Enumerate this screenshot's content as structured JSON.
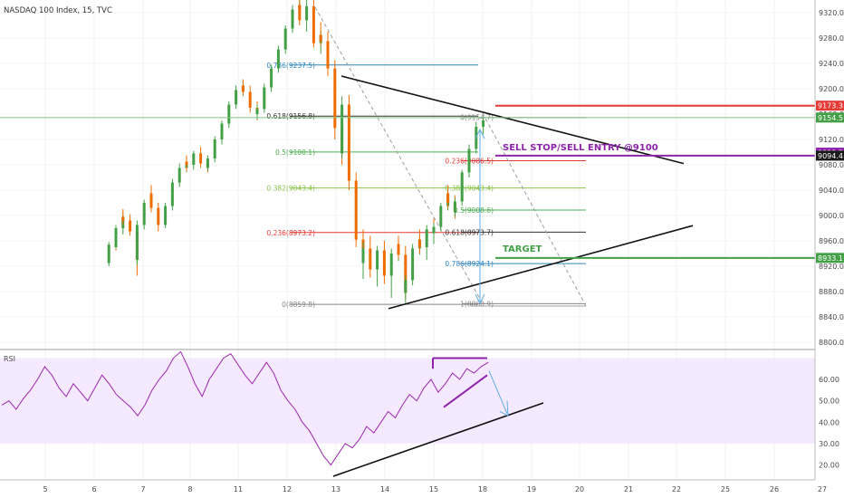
{
  "chart_data": {
    "type": "candlestick",
    "title": "NASDAQ 100 Index, 15, TVC",
    "price_axis": {
      "range": [
        8790,
        9340
      ],
      "ticks": [
        "9320.0",
        "9280.0",
        "9240.0",
        "9200.0",
        "9160.0",
        "9120.0",
        "9080.0",
        "9040.0",
        "9000.0",
        "8960.0",
        "8920.0",
        "8880.0",
        "8840.0",
        "8800.0"
      ]
    },
    "rsi_axis": {
      "label": "RSI",
      "range": [
        13,
        74
      ],
      "ticks": [
        "60.00",
        "50.00",
        "40.00",
        "30.00",
        "20.00"
      ],
      "band": [
        30,
        70
      ]
    },
    "x_ticks": [
      "5",
      "6",
      "7",
      "8",
      "11",
      "12",
      "13",
      "14",
      "15",
      "18",
      "19",
      "20",
      "21",
      "22",
      "25",
      "26",
      "27"
    ],
    "fib_levels": [
      {
        "label": "0.786(9237.5)",
        "value": 9237.5,
        "color": "#2e86c1"
      },
      {
        "label": "0.618(9156.8)",
        "value": 9156.8,
        "color": "#333333"
      },
      {
        "label": "0.5(9100.1)",
        "value": 9100.1,
        "color": "#4caf50"
      },
      {
        "label": "0.382(9043.4)",
        "value": 9043.4,
        "color": "#8bc34a"
      },
      {
        "label": "0.236(8973.2)",
        "value": 8973.2,
        "color": "#e53935"
      },
      {
        "label": "0(8859.8)",
        "value": 8859.8,
        "color": "#888888"
      }
    ],
    "fib_levels_2": [
      {
        "label": "0(9154.7)",
        "value": 9154.7,
        "color": "#888888"
      },
      {
        "label": "0.236(9086.5)",
        "value": 9086.5,
        "color": "#e53935"
      },
      {
        "label": "0.382(9043.4)",
        "value": 9043.4,
        "color": "#8bc34a"
      },
      {
        "label": "0.5(9008.6)",
        "value": 9008.6,
        "color": "#4caf50"
      },
      {
        "label": "0.618(8973.7)",
        "value": 8973.7,
        "color": "#333333"
      },
      {
        "label": "0.786(8924.1)",
        "value": 8924.1,
        "color": "#2e86c1"
      },
      {
        "label": "1(8860.9)",
        "value": 8860.9,
        "color": "#888888"
      }
    ],
    "price_tags": [
      {
        "label": "9173.3",
        "value": 9173.3,
        "color": "#e53935"
      },
      {
        "label": "9154.5",
        "value": 9154.5,
        "color": "#43a047"
      },
      {
        "label": "9099.2",
        "value": 9099.2,
        "color": "#8e24aa"
      },
      {
        "label": "9094.4",
        "value": 9094.4,
        "color": "#1a1a1a"
      },
      {
        "label": "8933.1",
        "value": 8933.1,
        "color": "#43a047"
      }
    ],
    "annotations": [
      {
        "text": "SELL STOP/SELL ENTRY @9100",
        "color": "#8e24aa"
      },
      {
        "text": "TARGET",
        "color": "#43a047"
      }
    ],
    "horizontal_lines": [
      {
        "name": "resistance",
        "value": 9173.3,
        "color": "#e53935"
      },
      {
        "name": "sell-entry",
        "value": 9094.4,
        "color": "#8e24aa"
      },
      {
        "name": "target",
        "value": 8933.1,
        "color": "#43a047"
      },
      {
        "name": "prior-level",
        "value": 9154.5,
        "color": "#81c784"
      }
    ],
    "triangle": {
      "upper": [
        {
          "date": "13",
          "price": 9220
        },
        {
          "date": "22",
          "price": 9082
        }
      ],
      "lower": [
        {
          "date": "14",
          "price": 8853
        },
        {
          "date": "22",
          "price": 8984
        }
      ]
    },
    "candles": [
      [
        9,
        8925,
        8936,
        8920,
        8932
      ],
      [
        9,
        8932,
        8950,
        8929,
        8946
      ],
      [
        9,
        8946,
        8958,
        8940,
        8954
      ],
      [
        10,
        8954,
        8962,
        8945,
        8950
      ],
      [
        10,
        8950,
        8972,
        8948,
        8968
      ],
      [
        10,
        8968,
        8985,
        8960,
        8980
      ],
      [
        11,
        8980,
        8995,
        8970,
        8990
      ],
      [
        11,
        8990,
        9005,
        8982,
        8998
      ],
      [
        11,
        8998,
        9010,
        8985,
        8992
      ],
      [
        12,
        8992,
        9002,
        8978,
        8985
      ],
      [
        12,
        8985,
        8995,
        8968,
        8975
      ],
      [
        13,
        8975,
        8985,
        8905,
        8930
      ],
      [
        13,
        8930,
        8975,
        8922,
        8970
      ],
      [
        13,
        8970,
        8992,
        8962,
        8985
      ],
      [
        14,
        8985,
        9010,
        8978,
        9005
      ],
      [
        14,
        9005,
        9025,
        8998,
        9020
      ],
      [
        15,
        9020,
        9040,
        9010,
        9035
      ],
      [
        15,
        9035,
        9048,
        9015,
        9022
      ],
      [
        15,
        9022,
        9035,
        9005,
        9012
      ],
      [
        16,
        9012,
        9020,
        8992,
        9000
      ],
      [
        16,
        9000,
        9012,
        8975,
        8985
      ],
      [
        17,
        8985,
        9000,
        8980,
        8995
      ],
      [
        17,
        8995,
        9020,
        8990,
        9015
      ],
      [
        18,
        9015,
        9040,
        9008,
        9035
      ],
      [
        18,
        9035,
        9058,
        9030,
        9052
      ],
      [
        19,
        9052,
        9072,
        9045,
        9068
      ],
      [
        19,
        9068,
        9082,
        9060,
        9075
      ],
      [
        20,
        9075,
        9090,
        9068,
        9085
      ],
      [
        20,
        9085,
        9095,
        9070,
        9080
      ],
      [
        21,
        9080,
        9092,
        9072,
        9088
      ],
      [
        21,
        9088,
        9102,
        9082,
        9098
      ],
      [
        22,
        9098,
        9108,
        9085,
        9092
      ],
      [
        22,
        9092,
        9098,
        9075,
        9082
      ],
      [
        23,
        9082,
        9088,
        9068,
        9075
      ],
      [
        23,
        9075,
        9095,
        9070,
        9090
      ],
      [
        24,
        9090,
        9110,
        9084,
        9105
      ],
      [
        24,
        9105,
        9125,
        9098,
        9120
      ],
      [
        25,
        9120,
        9138,
        9112,
        9132
      ],
      [
        25,
        9132,
        9150,
        9125,
        9145
      ],
      [
        26,
        9145,
        9165,
        9138,
        9158
      ],
      [
        26,
        9158,
        9180,
        9150,
        9175
      ],
      [
        27,
        9175,
        9195,
        9168,
        9190
      ],
      [
        27,
        9190,
        9205,
        9180,
        9198
      ],
      [
        28,
        9198,
        9212,
        9188,
        9205
      ],
      [
        28,
        9205,
        9215,
        9190,
        9195
      ],
      [
        29,
        9195,
        9205,
        9175,
        9182
      ],
      [
        29,
        9182,
        9190,
        9162,
        9170
      ],
      [
        30,
        9170,
        9180,
        9150,
        9160
      ],
      [
        30,
        9160,
        9175,
        9152,
        9168
      ],
      [
        31,
        9168,
        9190,
        9162,
        9185
      ],
      [
        31,
        9185,
        9208,
        9178,
        9202
      ],
      [
        32,
        9202,
        9222,
        9195,
        9218
      ],
      [
        32,
        9218,
        9238,
        9210,
        9232
      ],
      [
        33,
        9232,
        9252,
        9225,
        9248
      ],
      [
        33,
        9248,
        9268,
        9240,
        9262
      ],
      [
        34,
        9262,
        9285,
        9255,
        9280
      ],
      [
        34,
        9280,
        9300,
        9272,
        9295
      ],
      [
        35,
        9295,
        9318,
        9288,
        9312
      ],
      [
        35,
        9312,
        9332,
        9305,
        9325
      ],
      [
        36,
        9325,
        9340,
        9310,
        9332
      ],
      [
        36,
        9332,
        9340,
        9300,
        9308
      ],
      [
        37,
        9308,
        9325,
        9290,
        9318
      ],
      [
        37,
        9318,
        9340,
        9308,
        9330
      ],
      [
        38,
        9330,
        9340,
        9295,
        9302
      ],
      [
        38,
        9302,
        9315,
        9265,
        9272
      ],
      [
        39,
        9272,
        9292,
        9255,
        9285
      ],
      [
        39,
        9285,
        9305,
        9268,
        9275
      ],
      [
        40,
        9275,
        9290,
        9250,
        9258
      ],
      [
        40,
        9258,
        9275,
        9220,
        9232
      ],
      [
        41,
        9232,
        9245,
        9180,
        9195
      ],
      [
        41,
        9195,
        9208,
        9120,
        9138
      ],
      [
        42,
        9138,
        9150,
        9080,
        9098
      ],
      [
        42,
        9098,
        9188,
        9090,
        9175
      ],
      [
        43,
        9175,
        9190,
        9100,
        9112
      ],
      [
        43,
        9112,
        9125,
        9040,
        9055
      ],
      [
        44,
        9055,
        9068,
        8990,
        9005
      ],
      [
        44,
        9005,
        9015,
        8950,
        8962
      ],
      [
        45,
        8962,
        8978,
        8905,
        8925
      ],
      [
        45,
        8925,
        8958,
        8900,
        8948
      ],
      [
        46,
        8948,
        8968,
        8920,
        8932
      ],
      [
        46,
        8932,
        8948,
        8902,
        8915
      ],
      [
        47,
        8915,
        8935,
        8888,
        8928
      ],
      [
        47,
        8928,
        8952,
        8918,
        8945
      ],
      [
        48,
        8945,
        8960,
        8922,
        8930
      ],
      [
        48,
        8930,
        8942,
        8892,
        8905
      ],
      [
        49,
        8905,
        8922,
        8870,
        8915
      ],
      [
        49,
        8915,
        8948,
        8908,
        8940
      ],
      [
        50,
        8940,
        8962,
        8928,
        8955
      ],
      [
        50,
        8955,
        8968,
        8932,
        8938
      ],
      [
        51,
        8938,
        8952,
        8868,
        8878
      ],
      [
        51,
        8878,
        8905,
        8862,
        8898
      ],
      [
        52,
        8898,
        8935,
        8890,
        8930
      ],
      [
        52,
        8930,
        8955,
        8920,
        8948
      ],
      [
        53,
        8948,
        8970,
        8938,
        8962
      ],
      [
        53,
        8962,
        8978,
        8940,
        8950
      ],
      [
        54,
        8950,
        8962,
        8930,
        8958
      ],
      [
        54,
        8958,
        8985,
        8950,
        8978
      ],
      [
        55,
        8978,
        8995,
        8965,
        8972
      ],
      [
        55,
        8972,
        8988,
        8955,
        8982
      ],
      [
        56,
        8982,
        9005,
        8975,
        8998
      ],
      [
        56,
        8998,
        9020,
        8990,
        9015
      ],
      [
        57,
        9015,
        9040,
        9008,
        9035
      ],
      [
        57,
        9035,
        9048,
        9012,
        9020
      ],
      [
        58,
        9020,
        9032,
        8995,
        9005
      ],
      [
        58,
        9005,
        9028,
        8998,
        9022
      ],
      [
        59,
        9022,
        9055,
        9015,
        9050
      ],
      [
        59,
        9050,
        9072,
        9042,
        9068
      ],
      [
        60,
        9068,
        9095,
        9060,
        9090
      ],
      [
        60,
        9090,
        9112,
        9080,
        9105
      ],
      [
        61,
        9105,
        9132,
        9098,
        9125
      ],
      [
        61,
        9125,
        9148,
        9115,
        9140
      ],
      [
        62,
        9140,
        9156,
        9128,
        9150
      ]
    ],
    "rsi_series": [
      [
        0,
        48
      ],
      [
        2,
        50
      ],
      [
        4,
        46
      ],
      [
        6,
        51
      ],
      [
        8,
        55
      ],
      [
        10,
        60
      ],
      [
        12,
        66
      ],
      [
        14,
        62
      ],
      [
        16,
        56
      ],
      [
        18,
        52
      ],
      [
        20,
        58
      ],
      [
        22,
        54
      ],
      [
        24,
        50
      ],
      [
        26,
        56
      ],
      [
        28,
        62
      ],
      [
        30,
        58
      ],
      [
        32,
        53
      ],
      [
        34,
        50
      ],
      [
        36,
        47
      ],
      [
        38,
        43
      ],
      [
        40,
        48
      ],
      [
        42,
        55
      ],
      [
        44,
        60
      ],
      [
        46,
        64
      ],
      [
        48,
        70
      ],
      [
        50,
        73
      ],
      [
        52,
        66
      ],
      [
        54,
        58
      ],
      [
        56,
        52
      ],
      [
        58,
        60
      ],
      [
        60,
        65
      ],
      [
        62,
        70
      ],
      [
        64,
        72
      ],
      [
        66,
        67
      ],
      [
        68,
        62
      ],
      [
        70,
        58
      ],
      [
        72,
        63
      ],
      [
        74,
        68
      ],
      [
        76,
        63
      ],
      [
        78,
        55
      ],
      [
        80,
        50
      ],
      [
        82,
        46
      ],
      [
        84,
        40
      ],
      [
        86,
        36
      ],
      [
        88,
        30
      ],
      [
        90,
        24
      ],
      [
        92,
        20
      ],
      [
        94,
        25
      ],
      [
        96,
        30
      ],
      [
        98,
        28
      ],
      [
        100,
        32
      ],
      [
        102,
        38
      ],
      [
        104,
        35
      ],
      [
        106,
        40
      ],
      [
        108,
        45
      ],
      [
        110,
        42
      ],
      [
        112,
        48
      ],
      [
        114,
        53
      ],
      [
        116,
        50
      ],
      [
        118,
        56
      ],
      [
        120,
        60
      ],
      [
        122,
        54
      ],
      [
        124,
        58
      ],
      [
        126,
        63
      ],
      [
        128,
        60
      ],
      [
        130,
        65
      ],
      [
        132,
        63
      ],
      [
        134,
        66
      ],
      [
        136,
        68
      ]
    ]
  }
}
